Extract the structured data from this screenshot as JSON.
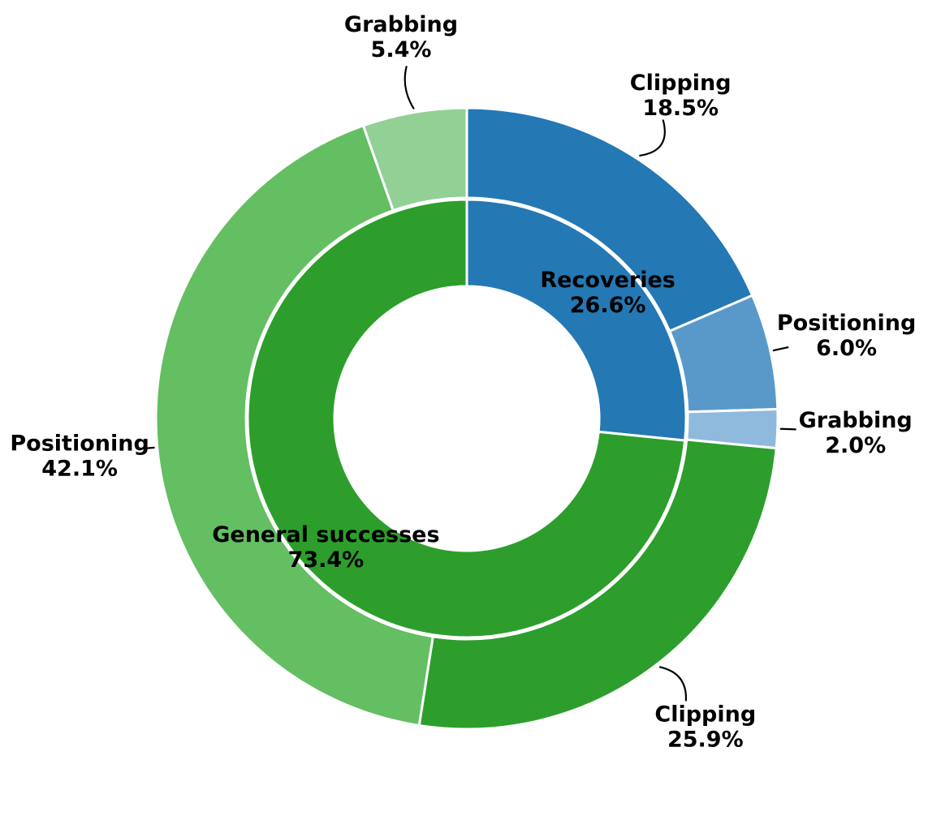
{
  "figure": {
    "background_color": "#ffffff",
    "text_color": "#000000"
  },
  "chart_data": {
    "type": "pie",
    "variant": "nested-donut",
    "start_angle": 90,
    "direction": "clockwise",
    "value_unit": "%",
    "legend_position": "none",
    "title": "",
    "rings": [
      {
        "name": "outer",
        "segments": [
          {
            "label": "Clipping",
            "value": 18.5,
            "color": "#2478b4",
            "leader": "curve"
          },
          {
            "label": "Positioning",
            "value": 6.0,
            "color": "#5999ca",
            "leader": "tick"
          },
          {
            "label": "Grabbing",
            "value": 2.0,
            "color": "#90badd",
            "leader": "tick"
          },
          {
            "label": "Clipping",
            "value": 25.9,
            "color": "#2d9e2c",
            "leader": "curve"
          },
          {
            "label": "Positioning",
            "value": 42.1,
            "color": "#64be62",
            "leader": "tick"
          },
          {
            "label": "Grabbing",
            "value": 5.4,
            "color": "#92d096",
            "leader": "curve"
          }
        ]
      },
      {
        "name": "inner",
        "segments": [
          {
            "label": "Recoveries",
            "value": 26.6,
            "color": "#2478b4",
            "leader": "none"
          },
          {
            "label": "General successes",
            "value": 73.4,
            "color": "#2d9e2c",
            "leader": "none"
          }
        ]
      }
    ]
  }
}
